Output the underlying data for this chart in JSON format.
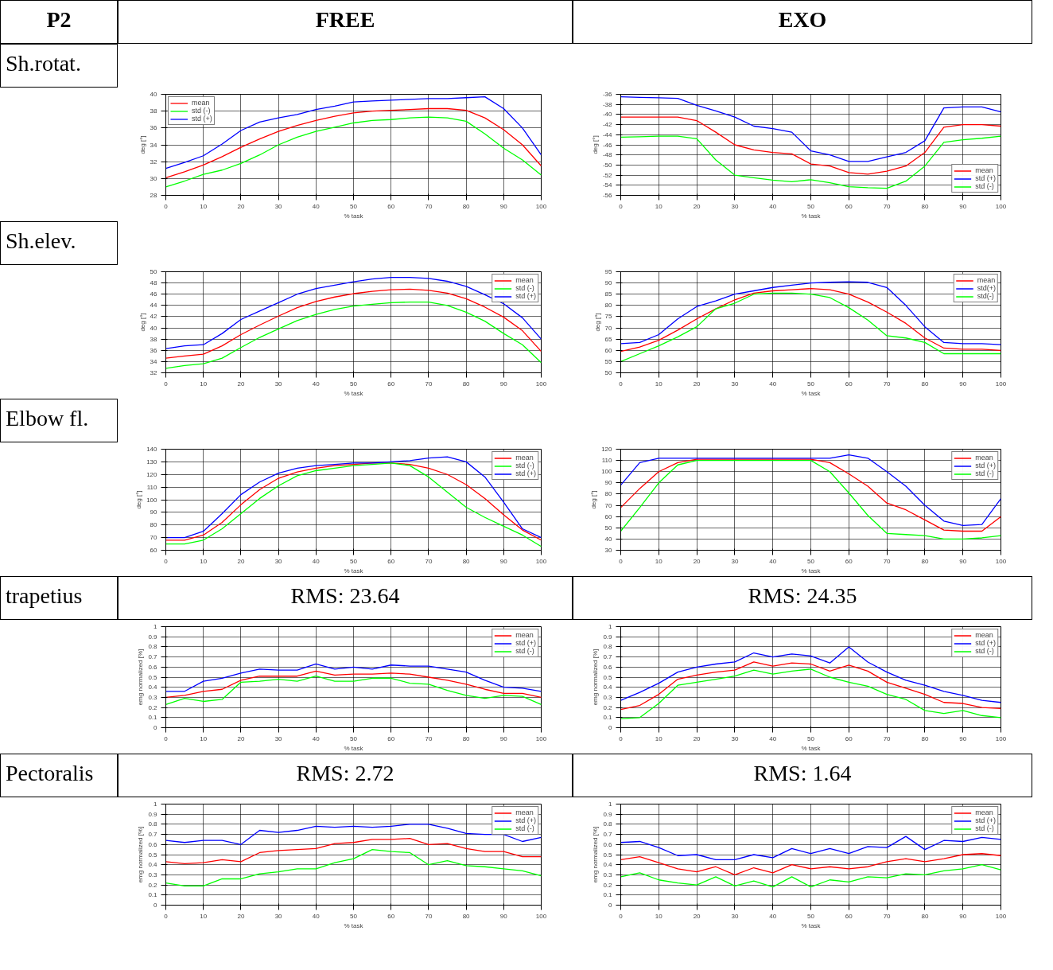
{
  "chart_data": [
    {
      "type": "line",
      "title": "FREE",
      "annotations": [
        "P2",
        "Sh.rotat."
      ],
      "xlabel": "% task",
      "ylabel": "deg [°]",
      "x": [
        0,
        5,
        10,
        15,
        20,
        25,
        30,
        35,
        40,
        45,
        50,
        55,
        60,
        65,
        70,
        75,
        80,
        85,
        90,
        95,
        100
      ],
      "xlim": [
        0,
        100
      ],
      "xticks": [
        0,
        10,
        20,
        30,
        40,
        50,
        60,
        70,
        80,
        90,
        100
      ],
      "ylim": [
        28,
        40
      ],
      "yticks": [
        28,
        30,
        32,
        34,
        36,
        38,
        40
      ],
      "grid": true,
      "legend": "top left",
      "series": [
        {
          "name": "mean",
          "color": "#ff0000",
          "values": [
            30.1,
            30.8,
            31.6,
            32.6,
            33.7,
            34.7,
            35.6,
            36.3,
            36.9,
            37.4,
            37.8,
            38.0,
            38.1,
            38.2,
            38.3,
            38.3,
            38.1,
            37.2,
            35.8,
            34.0,
            31.5
          ]
        },
        {
          "name": "std (-)",
          "color": "#00ff00",
          "values": [
            29.0,
            29.7,
            30.5,
            31.0,
            31.8,
            32.8,
            34.0,
            34.9,
            35.6,
            36.1,
            36.6,
            36.9,
            37.0,
            37.2,
            37.3,
            37.2,
            36.8,
            35.3,
            33.6,
            32.2,
            30.4
          ]
        },
        {
          "name": "std (+)",
          "color": "#0000ff",
          "values": [
            31.2,
            31.9,
            32.7,
            34.1,
            35.7,
            36.7,
            37.2,
            37.6,
            38.2,
            38.6,
            39.1,
            39.2,
            39.3,
            39.4,
            39.5,
            39.5,
            39.6,
            39.7,
            38.3,
            36.0,
            32.8
          ]
        }
      ]
    },
    {
      "type": "line",
      "title": "EXO",
      "xlabel": "% task",
      "ylabel": "deg [°]",
      "x": [
        0,
        5,
        10,
        15,
        20,
        25,
        30,
        35,
        40,
        45,
        50,
        55,
        60,
        65,
        70,
        75,
        80,
        85,
        90,
        95,
        100
      ],
      "xlim": [
        0,
        100
      ],
      "xticks": [
        0,
        10,
        20,
        30,
        40,
        50,
        60,
        70,
        80,
        90,
        100
      ],
      "ylim": [
        -56,
        -36
      ],
      "yticks": [
        -56,
        -54,
        -52,
        -50,
        -48,
        -46,
        -44,
        -42,
        -40,
        -38,
        -36
      ],
      "grid": true,
      "legend": "bottom right",
      "series": [
        {
          "name": "mean",
          "color": "#ff0000",
          "values": [
            -40.5,
            -40.5,
            -40.5,
            -40.5,
            -41.2,
            -43.5,
            -46,
            -47,
            -47.5,
            -47.8,
            -49.8,
            -50.2,
            -51.5,
            -51.8,
            -51.2,
            -50.2,
            -47.5,
            -42.5,
            -42,
            -42,
            -42.3
          ]
        },
        {
          "name": "std (+)",
          "color": "#0000ff",
          "values": [
            -36.5,
            -36.6,
            -36.7,
            -36.8,
            -38.2,
            -39.3,
            -40.5,
            -42.3,
            -42.8,
            -43.5,
            -47.2,
            -48,
            -49.3,
            -49.3,
            -48.4,
            -47.5,
            -45.2,
            -38.7,
            -38.5,
            -38.5,
            -39.5
          ]
        },
        {
          "name": "std (-)",
          "color": "#00ff00",
          "values": [
            -44.5,
            -44.4,
            -44.3,
            -44.3,
            -44.8,
            -49,
            -52,
            -52.5,
            -53,
            -53.3,
            -52.9,
            -53.5,
            -54.3,
            -54.5,
            -54.6,
            -53.2,
            -50.2,
            -45.5,
            -45,
            -44.7,
            -44.3
          ]
        }
      ]
    },
    {
      "type": "line",
      "annotations": [
        "Sh.elev."
      ],
      "xlabel": "% task",
      "ylabel": "deg [°]",
      "x": [
        0,
        5,
        10,
        15,
        20,
        25,
        30,
        35,
        40,
        45,
        50,
        55,
        60,
        65,
        70,
        75,
        80,
        85,
        90,
        95,
        100
      ],
      "xlim": [
        0,
        100
      ],
      "xticks": [
        0,
        10,
        20,
        30,
        40,
        50,
        60,
        70,
        80,
        90,
        100
      ],
      "ylim": [
        32,
        50
      ],
      "yticks": [
        32,
        34,
        36,
        38,
        40,
        42,
        44,
        46,
        48,
        50
      ],
      "grid": true,
      "legend": "top right",
      "series": [
        {
          "name": "mean",
          "color": "#ff0000",
          "values": [
            34.6,
            35.0,
            35.3,
            36.8,
            38.8,
            40.5,
            42.1,
            43.6,
            44.7,
            45.5,
            46.1,
            46.5,
            46.8,
            46.9,
            46.7,
            46.2,
            45.2,
            43.7,
            41.9,
            39.5,
            35.8
          ]
        },
        {
          "name": "std (-)",
          "color": "#00ff00",
          "values": [
            32.8,
            33.3,
            33.6,
            34.6,
            36.5,
            38.3,
            39.8,
            41.3,
            42.4,
            43.3,
            43.9,
            44.2,
            44.5,
            44.6,
            44.6,
            44.0,
            42.8,
            41.2,
            39.0,
            37.0,
            33.8
          ]
        },
        {
          "name": "std (+)",
          "color": "#0000ff",
          "values": [
            36.3,
            36.8,
            37.0,
            39.0,
            41.5,
            43.0,
            44.5,
            46.0,
            47.0,
            47.6,
            48.2,
            48.7,
            49.0,
            49.0,
            48.8,
            48.3,
            47.4,
            45.9,
            44.3,
            41.8,
            38.0
          ]
        }
      ]
    },
    {
      "type": "line",
      "xlabel": "% task",
      "ylabel": "deg [°]",
      "x": [
        0,
        5,
        10,
        15,
        20,
        25,
        30,
        35,
        40,
        45,
        50,
        55,
        60,
        65,
        70,
        75,
        80,
        85,
        90,
        95,
        100
      ],
      "xlim": [
        0,
        100
      ],
      "xticks": [
        0,
        10,
        20,
        30,
        40,
        50,
        60,
        70,
        80,
        90,
        100
      ],
      "ylim": [
        50,
        95
      ],
      "yticks": [
        50,
        55,
        60,
        65,
        70,
        75,
        80,
        85,
        90,
        95
      ],
      "grid": true,
      "legend": "top right",
      "series": [
        {
          "name": "mean",
          "color": "#ff0000",
          "values": [
            59.5,
            61.5,
            64.5,
            69,
            74,
            78.5,
            82.5,
            85.5,
            86.5,
            87,
            87.5,
            87,
            85,
            81.5,
            77,
            72,
            65.5,
            61,
            60.5,
            60.5,
            60
          ]
        },
        {
          "name": "std(+)",
          "color": "#0000ff",
          "values": [
            63,
            63.5,
            67,
            74,
            79.5,
            82,
            85,
            86.5,
            88,
            89,
            90,
            90.3,
            90.5,
            90.3,
            88,
            80,
            70.5,
            63.5,
            63,
            63,
            62.5
          ]
        },
        {
          "name": "std(-)",
          "color": "#00ff00",
          "values": [
            55,
            58.5,
            62,
            66,
            70.5,
            78.5,
            81,
            85,
            85.5,
            85.5,
            85,
            83.5,
            79,
            73.5,
            66.5,
            65.5,
            63.5,
            58.5,
            58.5,
            58.5,
            58.5
          ]
        }
      ]
    },
    {
      "type": "line",
      "annotations": [
        "Elbow fl."
      ],
      "xlabel": "% task",
      "ylabel": "deg [°]",
      "x": [
        0,
        5,
        10,
        15,
        20,
        25,
        30,
        35,
        40,
        45,
        50,
        55,
        60,
        65,
        70,
        75,
        80,
        85,
        90,
        95,
        100
      ],
      "xlim": [
        0,
        100
      ],
      "xticks": [
        0,
        10,
        20,
        30,
        40,
        50,
        60,
        70,
        80,
        90,
        100
      ],
      "ylim": [
        60,
        140
      ],
      "yticks": [
        60,
        70,
        80,
        90,
        100,
        110,
        120,
        130,
        140
      ],
      "grid": true,
      "legend": "top right",
      "series": [
        {
          "name": "mean",
          "color": "#ff0000",
          "values": [
            68,
            68,
            72,
            82,
            96,
            108,
            117,
            122,
            125,
            127,
            128,
            129,
            129,
            128,
            125,
            120,
            112,
            101,
            88,
            76,
            68
          ]
        },
        {
          "name": "std (-)",
          "color": "#00ff00",
          "values": [
            65,
            65,
            68,
            77,
            89,
            101,
            111,
            119,
            123,
            125,
            127,
            128,
            129,
            127,
            118,
            106,
            94,
            86,
            79,
            72,
            63
          ]
        },
        {
          "name": "std (+)",
          "color": "#0000ff",
          "values": [
            70,
            70,
            75,
            89,
            104,
            114,
            121,
            125,
            127,
            128,
            129,
            129,
            130,
            131,
            133,
            134,
            130,
            118,
            98,
            77,
            70
          ]
        }
      ]
    },
    {
      "type": "line",
      "xlabel": "% task",
      "ylabel": "deg [°]",
      "x": [
        0,
        5,
        10,
        15,
        20,
        25,
        30,
        35,
        40,
        45,
        50,
        55,
        60,
        65,
        70,
        75,
        80,
        85,
        90,
        95,
        100
      ],
      "xlim": [
        0,
        100
      ],
      "xticks": [
        0,
        10,
        20,
        30,
        40,
        50,
        60,
        70,
        80,
        90,
        100
      ],
      "ylim": [
        30,
        120
      ],
      "yticks": [
        30,
        40,
        50,
        60,
        70,
        80,
        90,
        100,
        110,
        120
      ],
      "grid": true,
      "legend": "top right",
      "series": [
        {
          "name": "mean",
          "color": "#ff0000",
          "values": [
            68,
            85,
            100,
            108,
            111,
            111,
            111,
            111,
            111,
            111,
            111,
            108,
            98,
            87,
            72,
            66,
            57,
            48,
            47,
            47,
            60
          ]
        },
        {
          "name": "std (+)",
          "color": "#0000ff",
          "values": [
            88,
            108,
            112,
            112,
            112,
            112,
            112,
            112,
            112,
            112,
            112,
            112,
            115,
            112,
            100,
            87,
            70,
            56,
            52,
            53,
            76
          ]
        },
        {
          "name": "std (-)",
          "color": "#00ff00",
          "values": [
            47,
            68,
            90,
            106,
            110,
            110,
            110,
            110,
            110,
            110,
            110,
            100,
            81,
            61,
            45,
            44,
            43,
            40,
            40,
            41,
            43
          ]
        }
      ]
    },
    {
      "type": "line",
      "subtitle": "RMS: 23.64",
      "annotations": [
        "trapetius"
      ],
      "xlabel": "% task",
      "ylabel": "emg normalized [%]",
      "x": [
        0,
        5,
        10,
        15,
        20,
        25,
        30,
        35,
        40,
        45,
        50,
        55,
        60,
        65,
        70,
        75,
        80,
        85,
        90,
        95,
        100
      ],
      "xlim": [
        0,
        100
      ],
      "xticks": [
        0,
        10,
        20,
        30,
        40,
        50,
        60,
        70,
        80,
        90,
        100
      ],
      "ylim": [
        0,
        1
      ],
      "yticks": [
        0,
        0.1,
        0.2,
        0.3,
        0.4,
        0.5,
        0.6,
        0.7,
        0.8,
        0.9,
        1
      ],
      "grid": true,
      "legend": "top right",
      "series": [
        {
          "name": "mean",
          "color": "#ff0000",
          "values": [
            0.3,
            0.32,
            0.36,
            0.38,
            0.47,
            0.51,
            0.51,
            0.51,
            0.56,
            0.52,
            0.53,
            0.53,
            0.54,
            0.53,
            0.5,
            0.47,
            0.43,
            0.38,
            0.34,
            0.34,
            0.3
          ]
        },
        {
          "name": "std (+)",
          "color": "#0000ff",
          "values": [
            0.36,
            0.36,
            0.46,
            0.49,
            0.54,
            0.58,
            0.57,
            0.57,
            0.63,
            0.58,
            0.6,
            0.58,
            0.62,
            0.61,
            0.61,
            0.58,
            0.55,
            0.47,
            0.4,
            0.39,
            0.36
          ]
        },
        {
          "name": "std (-)",
          "color": "#00ff00",
          "values": [
            0.23,
            0.29,
            0.26,
            0.28,
            0.45,
            0.46,
            0.48,
            0.46,
            0.51,
            0.46,
            0.46,
            0.49,
            0.49,
            0.44,
            0.43,
            0.37,
            0.32,
            0.29,
            0.32,
            0.31,
            0.23
          ]
        }
      ]
    },
    {
      "type": "line",
      "subtitle": "RMS: 24.35",
      "xlabel": "% task",
      "ylabel": "emg normalized [%]",
      "x": [
        0,
        5,
        10,
        15,
        20,
        25,
        30,
        35,
        40,
        45,
        50,
        55,
        60,
        65,
        70,
        75,
        80,
        85,
        90,
        95,
        100
      ],
      "xlim": [
        0,
        100
      ],
      "xticks": [
        0,
        10,
        20,
        30,
        40,
        50,
        60,
        70,
        80,
        90,
        100
      ],
      "ylim": [
        0,
        1
      ],
      "yticks": [
        0,
        0.1,
        0.2,
        0.3,
        0.4,
        0.5,
        0.6,
        0.7,
        0.8,
        0.9,
        1
      ],
      "grid": true,
      "legend": "top right",
      "series": [
        {
          "name": "mean",
          "color": "#ff0000",
          "values": [
            0.18,
            0.22,
            0.33,
            0.48,
            0.52,
            0.55,
            0.57,
            0.65,
            0.61,
            0.64,
            0.63,
            0.56,
            0.62,
            0.56,
            0.45,
            0.39,
            0.33,
            0.25,
            0.24,
            0.2,
            0.19
          ]
        },
        {
          "name": "std (+)",
          "color": "#0000ff",
          "values": [
            0.27,
            0.35,
            0.44,
            0.55,
            0.6,
            0.63,
            0.65,
            0.74,
            0.7,
            0.73,
            0.71,
            0.64,
            0.8,
            0.65,
            0.55,
            0.47,
            0.42,
            0.36,
            0.32,
            0.27,
            0.25
          ]
        },
        {
          "name": "std (-)",
          "color": "#00ff00",
          "values": [
            0.09,
            0.1,
            0.24,
            0.42,
            0.45,
            0.48,
            0.51,
            0.57,
            0.53,
            0.56,
            0.58,
            0.5,
            0.45,
            0.41,
            0.33,
            0.28,
            0.17,
            0.14,
            0.17,
            0.12,
            0.1
          ]
        }
      ]
    },
    {
      "type": "line",
      "subtitle": "RMS: 2.72",
      "annotations": [
        "Pectoralis"
      ],
      "xlabel": "% task",
      "ylabel": "emg normalized [%]",
      "x": [
        0,
        5,
        10,
        15,
        20,
        25,
        30,
        35,
        40,
        45,
        50,
        55,
        60,
        65,
        70,
        75,
        80,
        85,
        90,
        95,
        100
      ],
      "xlim": [
        0,
        100
      ],
      "xticks": [
        0,
        10,
        20,
        30,
        40,
        50,
        60,
        70,
        80,
        90,
        100
      ],
      "ylim": [
        0,
        1
      ],
      "yticks": [
        0,
        0.1,
        0.2,
        0.3,
        0.4,
        0.5,
        0.6,
        0.7,
        0.8,
        0.9,
        1
      ],
      "grid": true,
      "legend": "top right",
      "series": [
        {
          "name": "mean",
          "color": "#ff0000",
          "values": [
            0.43,
            0.41,
            0.42,
            0.45,
            0.43,
            0.52,
            0.54,
            0.55,
            0.56,
            0.61,
            0.62,
            0.65,
            0.65,
            0.66,
            0.6,
            0.61,
            0.56,
            0.53,
            0.53,
            0.48,
            0.48
          ]
        },
        {
          "name": "std (+)",
          "color": "#0000ff",
          "values": [
            0.64,
            0.62,
            0.64,
            0.64,
            0.6,
            0.74,
            0.72,
            0.74,
            0.78,
            0.77,
            0.78,
            0.77,
            0.78,
            0.8,
            0.8,
            0.76,
            0.71,
            0.7,
            0.7,
            0.63,
            0.67
          ]
        },
        {
          "name": "std (-)",
          "color": "#00ff00",
          "values": [
            0.22,
            0.19,
            0.19,
            0.26,
            0.26,
            0.31,
            0.33,
            0.36,
            0.36,
            0.42,
            0.46,
            0.55,
            0.53,
            0.52,
            0.4,
            0.44,
            0.39,
            0.38,
            0.36,
            0.34,
            0.29
          ]
        }
      ]
    },
    {
      "type": "line",
      "subtitle": "RMS: 1.64",
      "xlabel": "% task",
      "ylabel": "emg normalized [%]",
      "x": [
        0,
        5,
        10,
        15,
        20,
        25,
        30,
        35,
        40,
        45,
        50,
        55,
        60,
        65,
        70,
        75,
        80,
        85,
        90,
        95,
        100
      ],
      "xlim": [
        0,
        100
      ],
      "xticks": [
        0,
        10,
        20,
        30,
        40,
        50,
        60,
        70,
        80,
        90,
        100
      ],
      "ylim": [
        0,
        1
      ],
      "yticks": [
        0,
        0.1,
        0.2,
        0.3,
        0.4,
        0.5,
        0.6,
        0.7,
        0.8,
        0.9,
        1
      ],
      "grid": true,
      "legend": "top right",
      "series": [
        {
          "name": "mean",
          "color": "#ff0000",
          "values": [
            0.45,
            0.48,
            0.42,
            0.36,
            0.33,
            0.38,
            0.3,
            0.37,
            0.32,
            0.4,
            0.36,
            0.38,
            0.36,
            0.38,
            0.43,
            0.46,
            0.43,
            0.46,
            0.5,
            0.51,
            0.49
          ]
        },
        {
          "name": "std (+)",
          "color": "#0000ff",
          "values": [
            0.62,
            0.63,
            0.57,
            0.49,
            0.5,
            0.45,
            0.45,
            0.5,
            0.47,
            0.56,
            0.51,
            0.56,
            0.51,
            0.58,
            0.57,
            0.68,
            0.55,
            0.64,
            0.63,
            0.67,
            0.65
          ]
        },
        {
          "name": "std (-)",
          "color": "#00ff00",
          "values": [
            0.28,
            0.32,
            0.25,
            0.22,
            0.2,
            0.28,
            0.19,
            0.24,
            0.18,
            0.28,
            0.18,
            0.25,
            0.23,
            0.28,
            0.27,
            0.31,
            0.3,
            0.34,
            0.36,
            0.4,
            0.35
          ]
        }
      ]
    }
  ]
}
